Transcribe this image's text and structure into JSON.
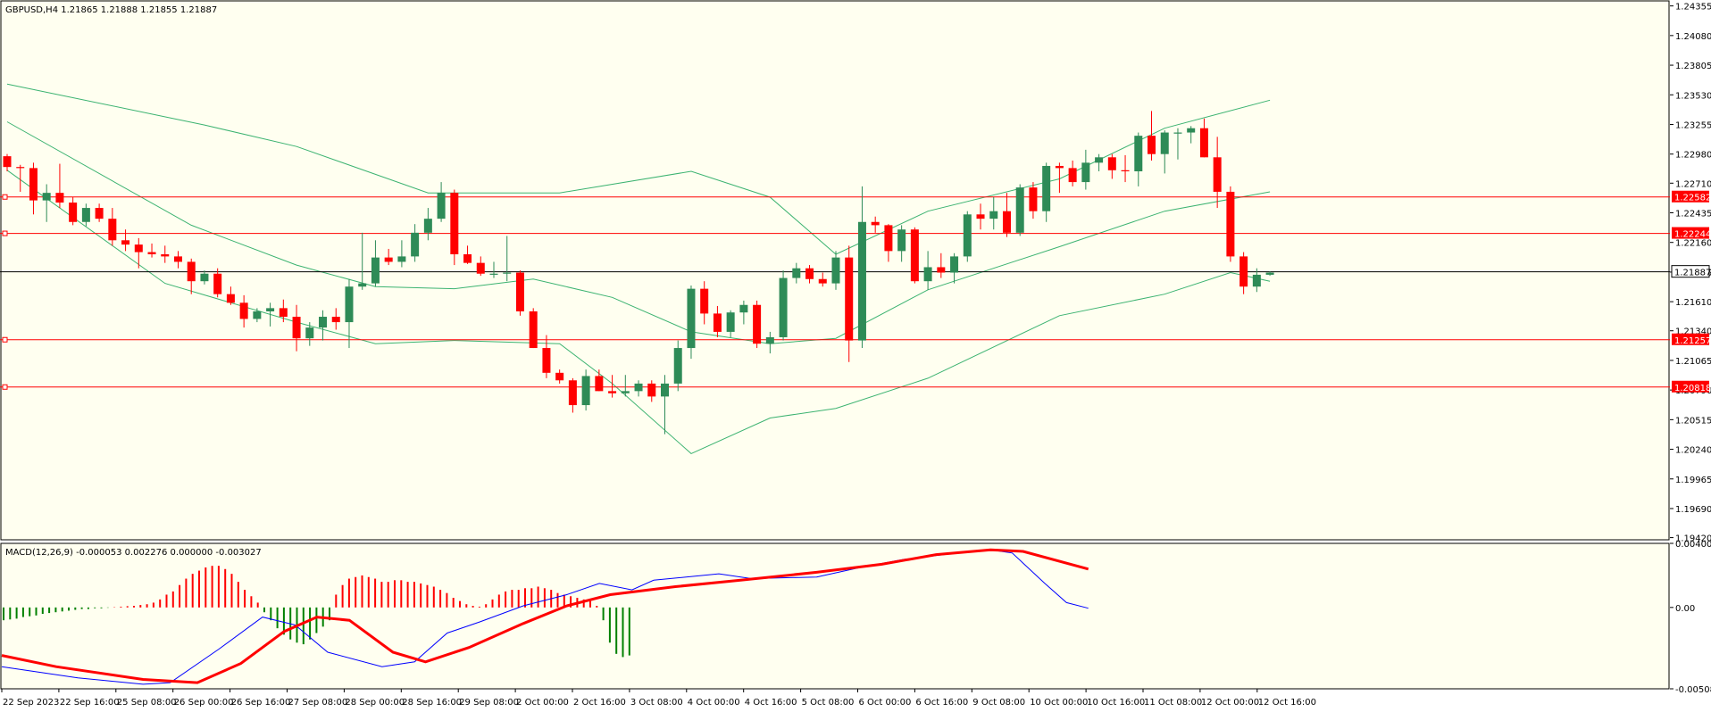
{
  "chart_data": {
    "type": "candlestick",
    "symbol_info": "GBPUSD,H4  1.21865 1.21888 1.21855 1.21887",
    "macd_info": "MACD(12,26,9) -0.000053 0.002276 0.000000 -0.003027",
    "price_axis": {
      "ylim": [
        1.194,
        1.2441
      ],
      "ticks": [
        "1.24355",
        "1.24080",
        "1.23805",
        "1.23530",
        "1.23255",
        "1.22980",
        "1.22710",
        "1.22435",
        "1.22160",
        "1.21885",
        "1.21610",
        "1.21340",
        "1.21065",
        "1.20790",
        "1.20515",
        "1.20240",
        "1.19965",
        "1.19690",
        "1.19420"
      ]
    },
    "macd_axis": {
      "ylim": [
        -0.005084,
        0.004004
      ],
      "ticks": [
        "0.004004",
        "0.00",
        "-0.005084"
      ]
    },
    "time_labels": [
      "22 Sep 2023",
      "22 Sep 16:00",
      "25 Sep 08:00",
      "26 Sep 00:00",
      "26 Sep 16:00",
      "27 Sep 08:00",
      "28 Sep 00:00",
      "28 Sep 16:00",
      "29 Sep 08:00",
      "2 Oct 00:00",
      "2 Oct 16:00",
      "3 Oct 08:00",
      "4 Oct 00:00",
      "4 Oct 16:00",
      "5 Oct 08:00",
      "6 Oct 00:00",
      "6 Oct 16:00",
      "9 Oct 08:00",
      "10 Oct 00:00",
      "10 Oct 16:00",
      "11 Oct 08:00",
      "12 Oct 00:00",
      "12 Oct 16:00"
    ],
    "current_price": {
      "label": "1.21887",
      "value": 1.21887
    },
    "horizontal_levels": [
      {
        "label": "1.22582",
        "value": 1.22582
      },
      {
        "label": "1.22244",
        "value": 1.22244
      },
      {
        "label": "1.21257",
        "value": 1.21257
      },
      {
        "label": "1.20818",
        "value": 1.20818
      }
    ],
    "candles": [
      [
        1.2296,
        1.2298,
        1.2282,
        1.2286
      ],
      [
        1.2286,
        1.2288,
        1.2263,
        1.2285
      ],
      [
        1.2285,
        1.229,
        1.2242,
        1.2255
      ],
      [
        1.2255,
        1.227,
        1.2235,
        1.2262
      ],
      [
        1.2262,
        1.2289,
        1.2248,
        1.2253
      ],
      [
        1.2253,
        1.2258,
        1.2232,
        1.2235
      ],
      [
        1.2235,
        1.2252,
        1.2231,
        1.2248
      ],
      [
        1.2248,
        1.2252,
        1.2235,
        1.2238
      ],
      [
        1.2238,
        1.2248,
        1.2213,
        1.2218
      ],
      [
        1.2218,
        1.2228,
        1.2208,
        1.2214
      ],
      [
        1.2214,
        1.222,
        1.2192,
        1.2207
      ],
      [
        1.2207,
        1.2215,
        1.2202,
        1.2205
      ],
      [
        1.2205,
        1.2213,
        1.2197,
        1.2203
      ],
      [
        1.2203,
        1.2208,
        1.2192,
        1.2198
      ],
      [
        1.2198,
        1.2201,
        1.2168,
        1.218
      ],
      [
        1.218,
        1.219,
        1.2177,
        1.2187
      ],
      [
        1.2187,
        1.2192,
        1.2165,
        1.2168
      ],
      [
        1.2168,
        1.2175,
        1.2158,
        1.216
      ],
      [
        1.216,
        1.2167,
        1.2137,
        1.2145
      ],
      [
        1.2145,
        1.2155,
        1.2142,
        1.2152
      ],
      [
        1.2152,
        1.216,
        1.2138,
        1.2155
      ],
      [
        1.2155,
        1.2163,
        1.2142,
        1.2147
      ],
      [
        1.2147,
        1.2158,
        1.2115,
        1.2127
      ],
      [
        1.2127,
        1.2142,
        1.212,
        1.2137
      ],
      [
        1.2137,
        1.2153,
        1.2125,
        1.2147
      ],
      [
        1.2147,
        1.2155,
        1.2135,
        1.2142
      ],
      [
        1.2142,
        1.2182,
        1.2118,
        1.2175
      ],
      [
        1.2175,
        1.2225,
        1.2172,
        1.2178
      ],
      [
        1.2178,
        1.2218,
        1.2175,
        1.2202
      ],
      [
        1.2202,
        1.221,
        1.2195,
        1.2198
      ],
      [
        1.2198,
        1.2218,
        1.2193,
        1.2203
      ],
      [
        1.2203,
        1.2233,
        1.2198,
        1.2225
      ],
      [
        1.2225,
        1.2248,
        1.2218,
        1.2238
      ],
      [
        1.2238,
        1.2272,
        1.2235,
        1.2262
      ],
      [
        1.2262,
        1.2265,
        1.2195,
        1.2205
      ],
      [
        1.2205,
        1.2213,
        1.2196,
        1.2197
      ],
      [
        1.2197,
        1.2203,
        1.2185,
        1.2187
      ],
      [
        1.2187,
        1.2198,
        1.2183,
        1.2187
      ],
      [
        1.2187,
        1.2222,
        1.218,
        1.2188
      ],
      [
        1.2188,
        1.219,
        1.2148,
        1.2152
      ],
      [
        1.2152,
        1.2155,
        1.2118,
        1.2118
      ],
      [
        1.2118,
        1.213,
        1.209,
        1.2095
      ],
      [
        1.2095,
        1.2098,
        1.2085,
        1.2088
      ],
      [
        1.2088,
        1.209,
        1.2058,
        1.2065
      ],
      [
        1.2065,
        1.2098,
        1.206,
        1.2092
      ],
      [
        1.2092,
        1.2098,
        1.2078,
        1.2078
      ],
      [
        1.2078,
        1.2093,
        1.2072,
        1.2076
      ],
      [
        1.2076,
        1.2093,
        1.2073,
        1.2078
      ],
      [
        1.2078,
        1.2088,
        1.2073,
        1.2085
      ],
      [
        1.2085,
        1.2088,
        1.2068,
        1.2073
      ],
      [
        1.2073,
        1.2093,
        1.2038,
        1.2085
      ],
      [
        1.2085,
        1.2125,
        1.2078,
        1.2118
      ],
      [
        1.2118,
        1.2176,
        1.2108,
        1.2173
      ],
      [
        1.2173,
        1.218,
        1.214,
        1.215
      ],
      [
        1.215,
        1.2157,
        1.2128,
        1.2133
      ],
      [
        1.2133,
        1.2153,
        1.2128,
        1.2151
      ],
      [
        1.2151,
        1.2162,
        1.214,
        1.2158
      ],
      [
        1.2158,
        1.2162,
        1.2118,
        1.2122
      ],
      [
        1.2122,
        1.2133,
        1.2113,
        1.2128
      ],
      [
        1.2128,
        1.219,
        1.2125,
        1.2183
      ],
      [
        1.2183,
        1.2197,
        1.2178,
        1.2192
      ],
      [
        1.2192,
        1.2195,
        1.2178,
        1.2182
      ],
      [
        1.2182,
        1.2188,
        1.2175,
        1.2178
      ],
      [
        1.2178,
        1.2208,
        1.2172,
        1.2202
      ],
      [
        1.2202,
        1.2213,
        1.2105,
        1.2125
      ],
      [
        1.2125,
        1.2268,
        1.2118,
        1.2235
      ],
      [
        1.2235,
        1.224,
        1.2225,
        1.2232
      ],
      [
        1.2232,
        1.2233,
        1.2198,
        1.2208
      ],
      [
        1.2208,
        1.2232,
        1.2198,
        1.2228
      ],
      [
        1.2228,
        1.223,
        1.2178,
        1.218
      ],
      [
        1.218,
        1.2208,
        1.2172,
        1.2193
      ],
      [
        1.2193,
        1.2206,
        1.2183,
        1.2188
      ],
      [
        1.2188,
        1.2206,
        1.2178,
        1.2203
      ],
      [
        1.2203,
        1.2245,
        1.2198,
        1.2242
      ],
      [
        1.2242,
        1.2252,
        1.2228,
        1.2238
      ],
      [
        1.2238,
        1.2258,
        1.2228,
        1.2245
      ],
      [
        1.2245,
        1.2262,
        1.2221,
        1.2225
      ],
      [
        1.2225,
        1.227,
        1.2222,
        1.2267
      ],
      [
        1.2267,
        1.2272,
        1.2238,
        1.2245
      ],
      [
        1.2245,
        1.229,
        1.2235,
        1.2287
      ],
      [
        1.2287,
        1.229,
        1.2262,
        1.2285
      ],
      [
        1.2285,
        1.2292,
        1.2268,
        1.2272
      ],
      [
        1.2272,
        1.2302,
        1.2265,
        1.229
      ],
      [
        1.229,
        1.2298,
        1.2282,
        1.2295
      ],
      [
        1.2295,
        1.2298,
        1.2275,
        1.2283
      ],
      [
        1.2283,
        1.2297,
        1.2272,
        1.2282
      ],
      [
        1.2282,
        1.2318,
        1.2268,
        1.2315
      ],
      [
        1.2315,
        1.2338,
        1.2292,
        1.2298
      ],
      [
        1.2298,
        1.232,
        1.228,
        1.2318
      ],
      [
        1.2318,
        1.2322,
        1.2293,
        1.2318
      ],
      [
        1.2318,
        1.2324,
        1.2308,
        1.2322
      ],
      [
        1.2322,
        1.2331,
        1.2295,
        1.2295
      ],
      [
        1.2295,
        1.2314,
        1.2248,
        1.2263
      ],
      [
        1.2263,
        1.2268,
        1.2198,
        1.2203
      ],
      [
        1.2203,
        1.2207,
        1.2168,
        1.2175
      ],
      [
        1.2175,
        1.2192,
        1.217,
        1.2186
      ],
      [
        1.2186,
        1.2189,
        1.2185,
        1.2188
      ]
    ],
    "bollinger": {
      "upper": [
        [
          0,
          1.2363
        ],
        [
          15,
          1.2325
        ],
        [
          22,
          1.2305
        ],
        [
          32,
          1.2262
        ],
        [
          42,
          1.2262
        ],
        [
          52,
          1.2282
        ],
        [
          58,
          1.2258
        ],
        [
          63,
          1.2205
        ],
        [
          70,
          1.2245
        ],
        [
          80,
          1.2275
        ],
        [
          88,
          1.2322
        ],
        [
          96,
          1.2348
        ]
      ],
      "middle": [
        [
          0,
          1.2328
        ],
        [
          14,
          1.2232
        ],
        [
          22,
          1.2195
        ],
        [
          28,
          1.2175
        ],
        [
          34,
          1.2173
        ],
        [
          40,
          1.2182
        ],
        [
          46,
          1.2165
        ],
        [
          52,
          1.2133
        ],
        [
          58,
          1.2122
        ],
        [
          63,
          1.2127
        ],
        [
          70,
          1.2172
        ],
        [
          80,
          1.2212
        ],
        [
          88,
          1.2245
        ],
        [
          96,
          1.2263
        ]
      ],
      "lower": [
        [
          0,
          1.2283
        ],
        [
          12,
          1.2178
        ],
        [
          22,
          1.2142
        ],
        [
          28,
          1.2122
        ],
        [
          34,
          1.2125
        ],
        [
          42,
          1.2122
        ],
        [
          46,
          1.2085
        ],
        [
          52,
          1.202
        ],
        [
          58,
          1.2053
        ],
        [
          63,
          1.2062
        ],
        [
          70,
          1.209
        ],
        [
          80,
          1.2148
        ],
        [
          88,
          1.2168
        ],
        [
          93,
          1.2188
        ],
        [
          96,
          1.218
        ]
      ]
    },
    "macd": {
      "histogram": [
        -0.0008,
        -0.00075,
        -0.0007,
        -0.0006,
        -0.00055,
        -0.0005,
        -0.0004,
        -0.00035,
        -0.0003,
        -0.00025,
        -0.0002,
        -0.00015,
        -0.0001,
        -0.0001,
        -5e-05,
        -5e-05,
        -2e-05,
        2e-05,
        5e-05,
        8e-05,
        0.0001,
        0.00015,
        0.0002,
        0.0003,
        0.0005,
        0.0008,
        0.001,
        0.0014,
        0.0018,
        0.0021,
        0.0023,
        0.0025,
        0.0026,
        0.0026,
        0.0024,
        0.0021,
        0.0016,
        0.0011,
        0.0007,
        0.0003,
        -0.0003,
        -0.0008,
        -0.0013,
        -0.0017,
        -0.002,
        -0.0022,
        -0.0023,
        -0.002,
        -0.0016,
        -0.0012,
        -0.0008,
        0.0008,
        0.0014,
        0.0018,
        0.0019,
        0.002,
        0.0019,
        0.0018,
        0.0016,
        0.0016,
        0.0017,
        0.0017,
        0.0016,
        0.0016,
        0.0015,
        0.0014,
        0.0013,
        0.0011,
        0.0009,
        0.0006,
        0.0004,
        0.0002,
        0.0001,
        5e-05,
        0.0002,
        0.0005,
        0.0008,
        0.001,
        0.0011,
        0.0011,
        0.0012,
        0.0012,
        0.0013,
        0.0012,
        0.0011,
        0.0009,
        0.0008,
        0.0007,
        0.0006,
        0.0005,
        0.0004,
        0.0001,
        -0.0008,
        -0.0022,
        -0.0029,
        -0.0031,
        -0.003
      ],
      "main_line": [
        [
          0,
          -0.0037
        ],
        [
          14,
          -0.0044
        ],
        [
          26,
          -0.0048
        ],
        [
          31,
          -0.0047
        ],
        [
          40,
          -0.0026
        ],
        [
          48,
          -0.0006
        ],
        [
          54,
          -0.0011
        ],
        [
          60,
          -0.0028
        ],
        [
          70,
          -0.0037
        ],
        [
          76,
          -0.0034
        ],
        [
          82,
          -0.0016
        ],
        [
          88,
          -0.0009
        ],
        [
          96,
          0.0001
        ],
        [
          104,
          0.0008
        ],
        [
          110,
          0.0015
        ],
        [
          116,
          0.0011
        ],
        [
          120,
          0.0017
        ],
        [
          132,
          0.0021
        ],
        [
          138,
          0.0018
        ],
        [
          150,
          0.0019
        ],
        [
          158,
          0.0025
        ],
        [
          166,
          0.003
        ],
        [
          176,
          0.0034
        ],
        [
          182,
          0.0036
        ],
        [
          186,
          0.0034
        ],
        [
          192,
          0.0015
        ],
        [
          196,
          0.0003
        ],
        [
          200,
          -5e-05
        ]
      ],
      "signal_line": [
        [
          0,
          -0.003
        ],
        [
          10,
          -0.0037
        ],
        [
          26,
          -0.0045
        ],
        [
          36,
          -0.0047
        ],
        [
          44,
          -0.0035
        ],
        [
          52,
          -0.0015
        ],
        [
          58,
          -0.0006
        ],
        [
          64,
          -0.0008
        ],
        [
          72,
          -0.0028
        ],
        [
          78,
          -0.0034
        ],
        [
          86,
          -0.0025
        ],
        [
          96,
          -0.001
        ],
        [
          104,
          0.0001
        ],
        [
          112,
          0.0008
        ],
        [
          124,
          0.0013
        ],
        [
          136,
          0.0017
        ],
        [
          150,
          0.0022
        ],
        [
          162,
          0.0027
        ],
        [
          172,
          0.0033
        ],
        [
          182,
          0.0036
        ],
        [
          188,
          0.0035
        ],
        [
          200,
          0.0024
        ]
      ]
    },
    "colors": {
      "background": "#fffff0",
      "bull": "#2e8b57",
      "bear": "#ff0000",
      "bands": "#3cb371",
      "level_line": "#ff0000",
      "price_line": "#000000",
      "macd_main": "#0000ff",
      "macd_signal": "#ff0000",
      "macd_hist_pos": "#ff0000",
      "macd_hist_neg": "#008000"
    }
  }
}
